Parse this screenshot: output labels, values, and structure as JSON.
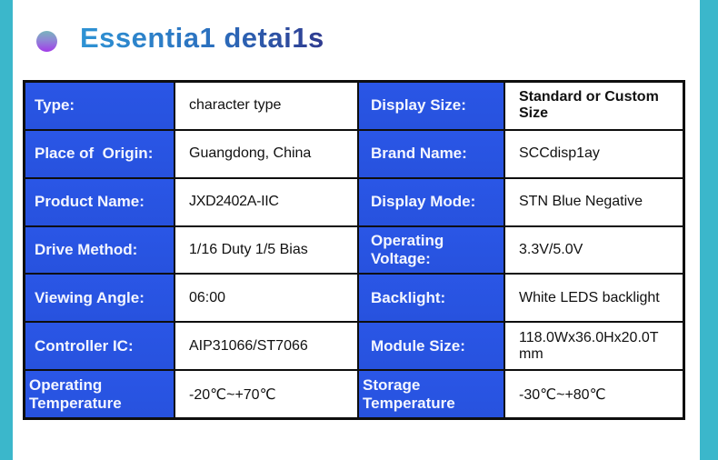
{
  "colors": {
    "accent_teal": "#3bb7cb",
    "label_blue": "#2752e2",
    "title_gradient_start": "#2e93d4",
    "title_gradient_end": "#2f3a8f",
    "bullet_top": "#79b4bd",
    "bullet_bottom": "#a23ce8",
    "table_border": "#0e0e0e"
  },
  "header": {
    "title": "Essentia1 detai1s",
    "bullet_icon": "gradient-sphere"
  },
  "spec_table": {
    "rows": [
      {
        "left_label": "Type:",
        "left_value": "character type",
        "right_label": "Display Size:",
        "right_value": "Standard or Custom Size"
      },
      {
        "left_label": "Place of  Origin:",
        "left_value": "Guangdong, China",
        "right_label": "Brand Name:",
        "right_value": "SCCdisp1ay"
      },
      {
        "left_label": "Product Name:",
        "left_value": "JXD2402A-IIC",
        "right_label": "Display Mode:",
        "right_value": "STN Blue Negative"
      },
      {
        "left_label": "Drive Method:",
        "left_value": "1/16 Duty 1/5 Bias",
        "right_label": "Operating Voltage:",
        "right_value": "3.3V/5.0V"
      },
      {
        "left_label": "Viewing Angle:",
        "left_value": "06:00",
        "right_label": "Backlight:",
        "right_value": "White LEDS backlight"
      },
      {
        "left_label": "Controller IC:",
        "left_value": "AIP31066/ST7066",
        "right_label": "Module Size:",
        "right_value": "118.0Wx36.0Hx20.0T mm"
      },
      {
        "left_label": "Operating Temperature",
        "left_value": "-20℃~+70℃",
        "right_label": "Storage  Temperature",
        "right_value": "-30℃~+80℃"
      }
    ]
  }
}
